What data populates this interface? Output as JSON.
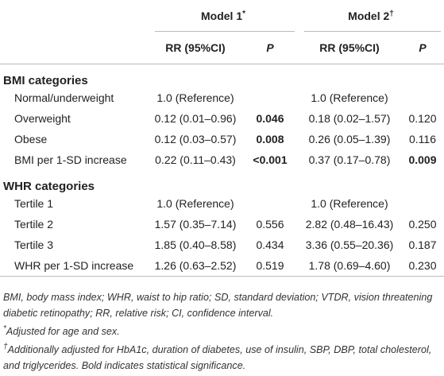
{
  "header": {
    "groups": [
      {
        "text": "Model 1",
        "mark": "*"
      },
      {
        "text": "Model 2",
        "mark": "†"
      }
    ],
    "columns": [
      {
        "text": "RR (95%CI)",
        "italic": false
      },
      {
        "text": "P",
        "italic": true
      },
      {
        "text": "RR (95%CI)",
        "italic": false
      },
      {
        "text": "P",
        "italic": true
      }
    ]
  },
  "sections": [
    {
      "title": "BMI categories",
      "rows": [
        {
          "label": "Normal/underweight",
          "cells": [
            {
              "text": "1.0 (Reference)"
            },
            {
              "text": "1.0 (Reference)"
            }
          ]
        },
        {
          "label": "Overweight",
          "cells": [
            {
              "text": "0.12 (0.01–0.96)"
            },
            {
              "text": "0.046",
              "bold": true
            },
            {
              "text": "0.18 (0.02–1.57)"
            },
            {
              "text": "0.120"
            }
          ]
        },
        {
          "label": "Obese",
          "cells": [
            {
              "text": "0.12 (0.03–0.57)"
            },
            {
              "text": "0.008",
              "bold": true
            },
            {
              "text": "0.26 (0.05–1.39)"
            },
            {
              "text": "0.116"
            }
          ]
        },
        {
          "label": "BMI per 1-SD increase",
          "cells": [
            {
              "text": "0.22 (0.11–0.43)"
            },
            {
              "text": "<0.001",
              "bold": true
            },
            {
              "text": "0.37 (0.17–0.78)"
            },
            {
              "text": "0.009",
              "bold": true
            }
          ]
        }
      ]
    },
    {
      "title": "WHR categories",
      "rows": [
        {
          "label": "Tertile 1",
          "cells": [
            {
              "text": "1.0 (Reference)"
            },
            {
              "text": "1.0 (Reference)"
            }
          ]
        },
        {
          "label": "Tertile 2",
          "cells": [
            {
              "text": "1.57 (0.35–7.14)"
            },
            {
              "text": "0.556"
            },
            {
              "text": "2.82 (0.48–16.43)"
            },
            {
              "text": "0.250"
            }
          ]
        },
        {
          "label": "Tertile 3",
          "cells": [
            {
              "text": "1.85 (0.40–8.58)"
            },
            {
              "text": "0.434"
            },
            {
              "text": "3.36 (0.55–20.36)"
            },
            {
              "text": "0.187"
            }
          ]
        },
        {
          "label": "WHR per 1-SD increase",
          "cells": [
            {
              "text": "1.26 (0.63–2.52)"
            },
            {
              "text": "0.519"
            },
            {
              "text": "1.78 (0.69–4.60)"
            },
            {
              "text": "0.230"
            }
          ]
        }
      ]
    }
  ],
  "footnotes": [
    {
      "text": "BMI, body mass index; WHR, waist to hip ratio; SD, standard deviation; VTDR, vision threatening diabetic retinopathy; RR, relative risk; CI, confidence interval."
    },
    {
      "mark": "*",
      "text": "Adjusted for age and sex."
    },
    {
      "mark": "†",
      "text": "Additionally adjusted for HbA1c, duration of diabetes, use of insulin, SBP, DBP, total cholesterol, and triglycerides. Bold indicates statistical significance."
    }
  ]
}
